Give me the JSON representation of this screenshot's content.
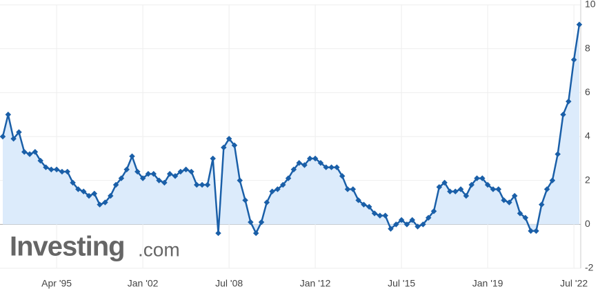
{
  "chart_data": {
    "type": "line",
    "watermark": {
      "main": "Investing",
      "suffix": ".com"
    },
    "categories": [
      null,
      null,
      null,
      null,
      null,
      null,
      null,
      null,
      null,
      null,
      "Apr '95",
      null,
      null,
      null,
      null,
      null,
      null,
      null,
      null,
      null,
      null,
      null,
      null,
      null,
      null,
      null,
      "Jan '02",
      null,
      null,
      null,
      null,
      null,
      null,
      null,
      null,
      null,
      null,
      null,
      null,
      null,
      null,
      null,
      "Jul '08",
      null,
      null,
      null,
      null,
      null,
      null,
      null,
      null,
      null,
      null,
      null,
      null,
      null,
      null,
      null,
      "Jan '12",
      null,
      null,
      null,
      null,
      null,
      null,
      null,
      null,
      null,
      null,
      null,
      null,
      null,
      null,
      null,
      "Jul '15",
      null,
      null,
      null,
      null,
      null,
      null,
      null,
      null,
      null,
      null,
      null,
      null,
      null,
      null,
      null,
      "Jan '19",
      null,
      null,
      null,
      null,
      null,
      null,
      null,
      null,
      null,
      null,
      null,
      null,
      null,
      null,
      null,
      "Jul '22",
      null
    ],
    "values": [
      4.0,
      5.0,
      3.9,
      4.2,
      3.3,
      3.2,
      3.3,
      2.9,
      2.6,
      2.5,
      2.5,
      2.4,
      2.4,
      1.9,
      1.6,
      1.5,
      1.3,
      1.4,
      0.9,
      1.0,
      1.3,
      1.8,
      2.1,
      2.5,
      3.1,
      2.4,
      2.1,
      2.3,
      2.3,
      2.0,
      1.9,
      2.3,
      2.2,
      2.4,
      2.5,
      2.4,
      1.8,
      1.8,
      1.8,
      3.0,
      -0.4,
      3.5,
      3.9,
      3.6,
      2.0,
      1.1,
      0.1,
      -0.4,
      0.1,
      1.0,
      1.5,
      1.6,
      1.8,
      2.1,
      2.5,
      2.8,
      2.7,
      3.0,
      3.0,
      2.8,
      2.6,
      2.6,
      2.6,
      2.2,
      1.6,
      1.6,
      1.1,
      0.9,
      0.8,
      0.5,
      0.4,
      0.4,
      -0.2,
      0.0,
      0.2,
      0.0,
      0.2,
      -0.1,
      0.0,
      0.3,
      0.6,
      1.7,
      1.9,
      1.5,
      1.5,
      1.6,
      1.3,
      1.8,
      2.1,
      2.1,
      1.8,
      1.6,
      1.6,
      1.1,
      1.0,
      1.3,
      0.5,
      0.3,
      -0.3,
      -0.3,
      0.9,
      1.6,
      2.0,
      3.2,
      5.0,
      5.6,
      7.5,
      9.1
    ],
    "color": "#1a5fa8",
    "fill": "#dcebfb",
    "ylim": [
      -2,
      10
    ],
    "yticks": [
      -2,
      0,
      2,
      4,
      6,
      8,
      10
    ],
    "grid": true
  }
}
